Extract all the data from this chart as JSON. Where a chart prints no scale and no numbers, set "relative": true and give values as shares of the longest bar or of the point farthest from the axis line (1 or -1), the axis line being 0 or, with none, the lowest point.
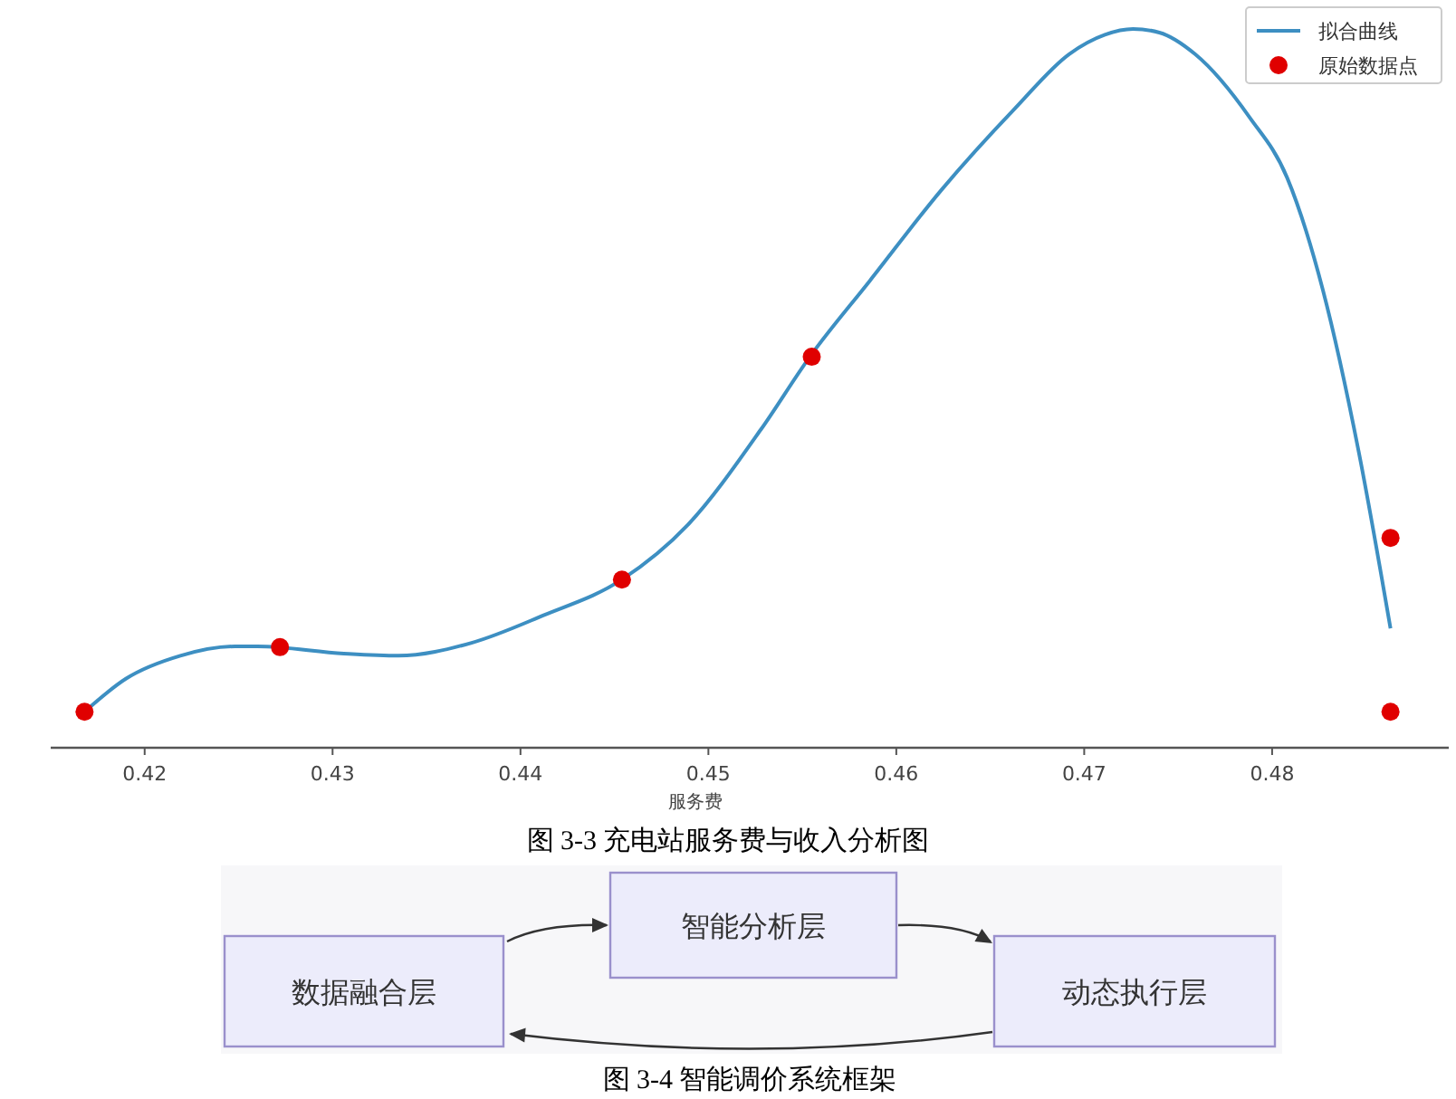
{
  "chart_data": [
    {
      "type": "line",
      "title": "图 3-3 充电站服务费与收入分析图",
      "xlabel": "服务费",
      "relative": true,
      "xlim": [
        0.415,
        0.4894
      ],
      "xticks": [
        0.42,
        0.43,
        0.44,
        0.45,
        0.46,
        0.47,
        0.48
      ],
      "legend": "top right",
      "series": [
        {
          "name": "拟合曲线",
          "type": "line",
          "color": "#3d8fc2",
          "marker": "none",
          "line_style": "solid",
          "x": [
            0.4168,
            0.419,
            0.4219,
            0.4248,
            0.426,
            0.4306,
            0.4335,
            0.4374,
            0.4412,
            0.4454,
            0.4489,
            0.4528,
            0.4554,
            0.4586,
            0.4624,
            0.4663,
            0.4692,
            0.4711,
            0.4726,
            0.474,
            0.4759,
            0.4788,
            0.4808,
            0.4827,
            0.4846,
            0.4863
          ],
          "values": [
            0.05,
            0.096,
            0.128,
            0.141,
            0.141,
            0.131,
            0.128,
            0.146,
            0.184,
            0.234,
            0.31,
            0.443,
            0.544,
            0.65,
            0.776,
            0.889,
            0.965,
            0.992,
            1.0,
            0.995,
            0.965,
            0.877,
            0.793,
            0.637,
            0.413,
            0.166
          ]
        },
        {
          "name": "原始数据点",
          "type": "scatter",
          "color": "#e00000",
          "marker": "circle",
          "x": [
            0.4168,
            0.4272,
            0.4454,
            0.4555,
            0.4863,
            0.4863
          ],
          "values": [
            0.05,
            0.14,
            0.234,
            0.544,
            0.292,
            0.05
          ]
        }
      ]
    },
    {
      "type": "other",
      "title": "图 3-4 智能调价系统框架",
      "annotations": [
        "数据融合层",
        "智能分析层",
        "动态执行层"
      ]
    }
  ]
}
